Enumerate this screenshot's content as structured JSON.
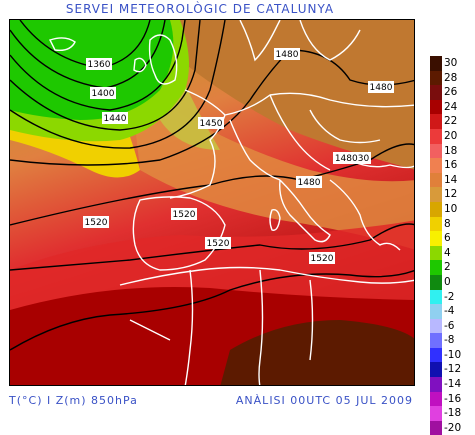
{
  "title": "SERVEI METEOROLÒGIC DE CATALUNYA",
  "footer": {
    "variables": "T(°C) I Z(m) 850hPa",
    "analysis": "ANÀLISI 00UTC 05 JUL 2009"
  },
  "contour_labels": [
    {
      "id": "c1360",
      "text": "1360"
    },
    {
      "id": "c1400",
      "text": "1400"
    },
    {
      "id": "c1440",
      "text": "1440"
    },
    {
      "id": "c1450",
      "text": "1450"
    },
    {
      "id": "c1480a",
      "text": "1480"
    },
    {
      "id": "c1480b",
      "text": "1480"
    },
    {
      "id": "c1480c",
      "text": "1480"
    },
    {
      "id": "c148030",
      "text": "148030"
    },
    {
      "id": "c1520a",
      "text": "1520"
    },
    {
      "id": "c1520b",
      "text": "1520"
    },
    {
      "id": "c1520c",
      "text": "1520"
    },
    {
      "id": "c1520d",
      "text": "1520"
    }
  ],
  "legend": [
    {
      "label": "30",
      "color": "#3a0f00"
    },
    {
      "label": "28",
      "color": "#5c1a00"
    },
    {
      "label": "26",
      "color": "#7a0d0d"
    },
    {
      "label": "24",
      "color": "#a80000"
    },
    {
      "label": "22",
      "color": "#d01818"
    },
    {
      "label": "20",
      "color": "#ec3a3a"
    },
    {
      "label": "18",
      "color": "#f26060"
    },
    {
      "label": "16",
      "color": "#f08050"
    },
    {
      "label": "14",
      "color": "#e0803a"
    },
    {
      "label": "12",
      "color": "#d89a3a"
    },
    {
      "label": "10",
      "color": "#d8a600"
    },
    {
      "label": "8",
      "color": "#f0d000"
    },
    {
      "label": "6",
      "color": "#f8f000"
    },
    {
      "label": "4",
      "color": "#8cd800"
    },
    {
      "label": "2",
      "color": "#1ec800"
    },
    {
      "label": "0",
      "color": "#108a10"
    },
    {
      "label": "-2",
      "color": "#30f0f0"
    },
    {
      "label": "-4",
      "color": "#90d0f0"
    },
    {
      "label": "-6",
      "color": "#b8b8ff"
    },
    {
      "label": "-8",
      "color": "#7070ff"
    },
    {
      "label": "-10",
      "color": "#3030ff"
    },
    {
      "label": "-12",
      "color": "#1010b0"
    },
    {
      "label": "-14",
      "color": "#8010c0"
    },
    {
      "label": "-16",
      "color": "#c010c0"
    },
    {
      "label": "-18",
      "color": "#e040e0"
    },
    {
      "label": "-20",
      "color": "#a010a0"
    }
  ]
}
